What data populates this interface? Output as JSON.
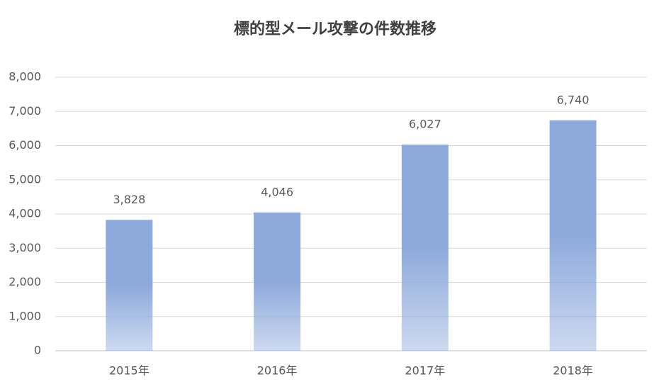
{
  "chart_data": {
    "type": "bar",
    "title": "標的型メール攻撃の件数推移",
    "categories": [
      "2015年",
      "2016年",
      "2017年",
      "2018年"
    ],
    "values": [
      3828,
      4046,
      6027,
      6740
    ],
    "value_labels": [
      "3,828",
      "4,046",
      "6,027",
      "6,740"
    ],
    "color": "#8eaadc",
    "ylim": [
      0,
      8000
    ],
    "yticks": [
      0,
      {
        "value": 1000,
        "label": "1,000"
      },
      {
        "value": 2000,
        "label": "2,000"
      },
      {
        "value": 3000,
        "label": "3,000"
      },
      {
        "value": 4000,
        "label": "4,000"
      },
      {
        "value": 5000,
        "label": "5,000"
      },
      {
        "value": 6000,
        "label": "6,000"
      },
      {
        "value": 7000,
        "label": "7,000"
      },
      {
        "value": 8000,
        "label": "8,000"
      }
    ],
    "grid": true
  }
}
